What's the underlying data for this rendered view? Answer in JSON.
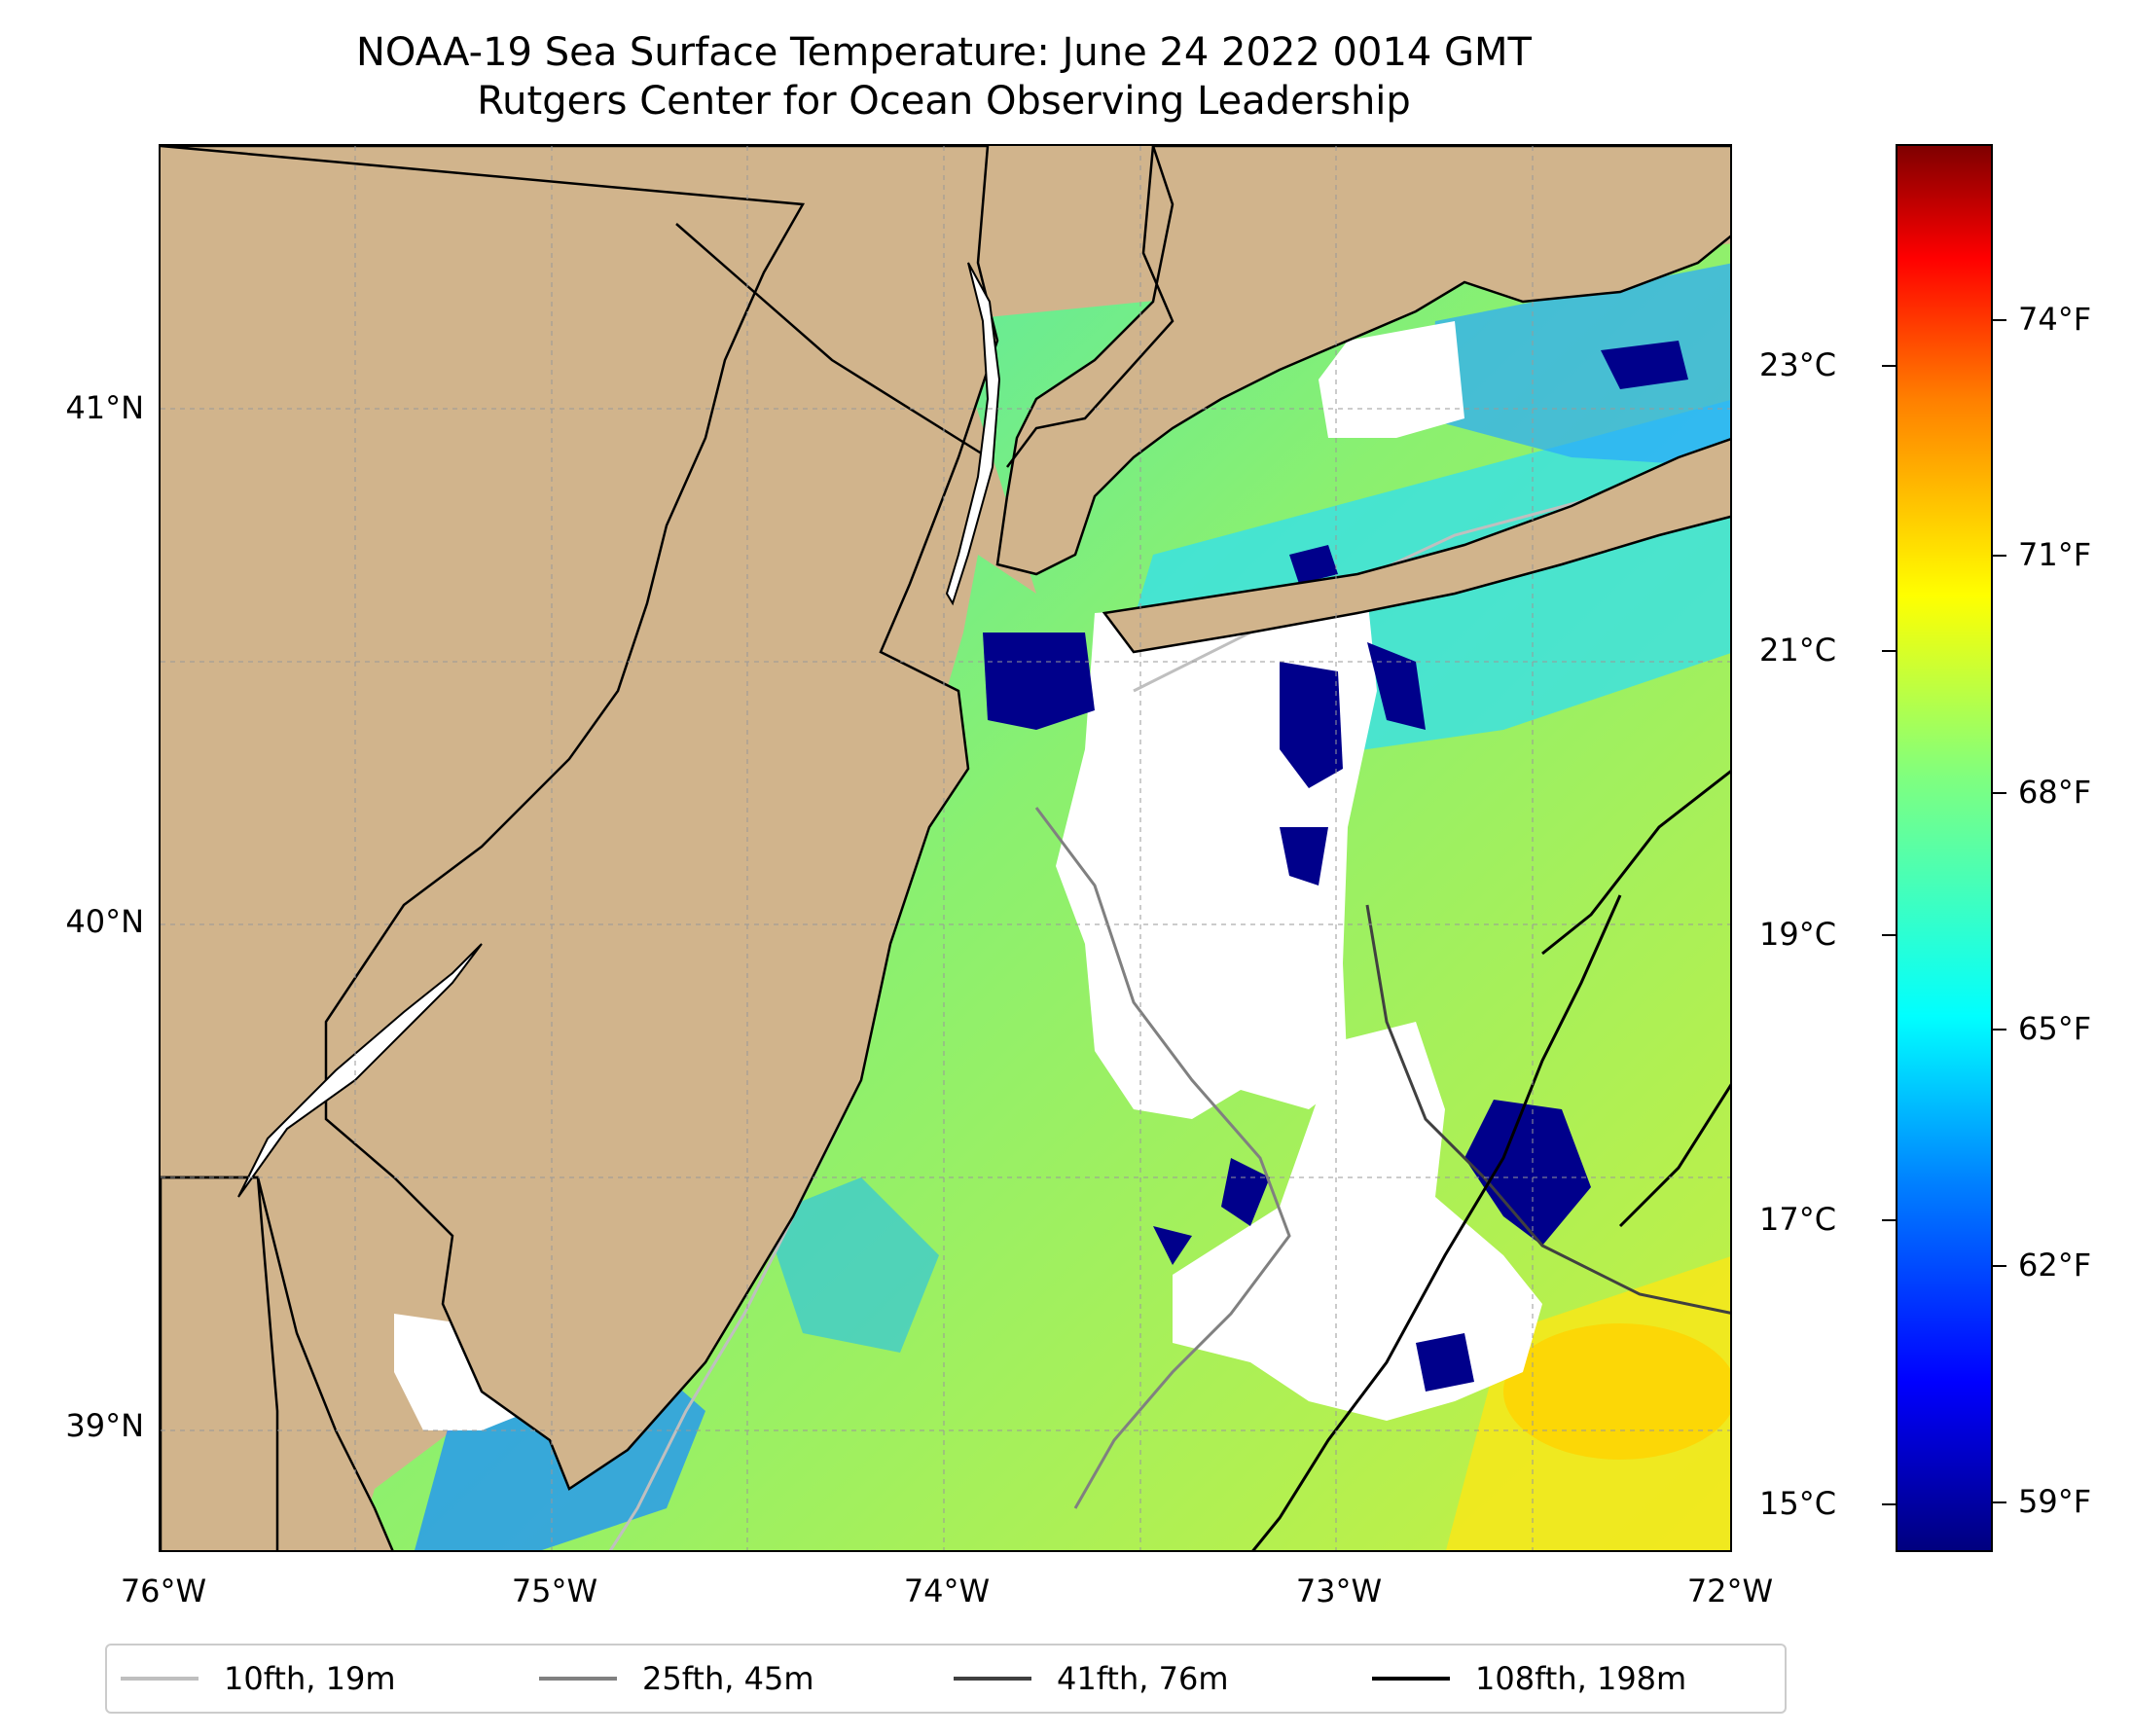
{
  "title": {
    "line1": "NOAA-19 Sea Surface Temperature: June 24 2022 0014 GMT",
    "line2": "Rutgers Center for Ocean Observing Leadership"
  },
  "axes": {
    "y_labels": [
      "41°N",
      "40°N",
      "39°N"
    ],
    "x_labels": [
      "76°W",
      "75°W",
      "74°W",
      "73°W",
      "72°W"
    ]
  },
  "colorbar": {
    "celsius_labels": [
      "23°C",
      "21°C",
      "19°C",
      "17°C",
      "15°C"
    ],
    "fahrenheit_labels": [
      "74°F",
      "71°F",
      "68°F",
      "65°F",
      "62°F",
      "59°F"
    ],
    "colormap": "jet"
  },
  "legend": {
    "items": [
      {
        "label": "10fth, 19m",
        "color": "#bfbfbf"
      },
      {
        "label": "25fth, 45m",
        "color": "#808080"
      },
      {
        "label": "41fth, 76m",
        "color": "#404040"
      },
      {
        "label": "108fth, 198m",
        "color": "#000000"
      }
    ]
  },
  "colors": {
    "land": "#d1b48c",
    "no_data": "#ffffff",
    "warm_offshore": "#ffe000",
    "cool_nearshore": "#00a0ff",
    "cold_patches": "#00008b"
  }
}
